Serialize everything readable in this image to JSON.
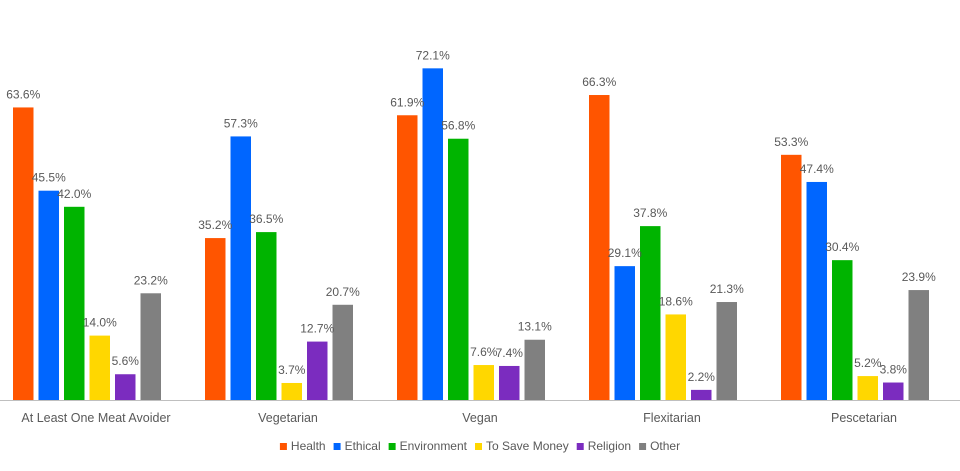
{
  "chart_data": {
    "type": "bar",
    "categories": [
      "At Least One Meat Avoider",
      "Vegetarian",
      "Vegan",
      "Flexitarian",
      "Pescetarian"
    ],
    "series": [
      {
        "name": "Health",
        "color": "#FF5500",
        "values": [
          63.6,
          35.2,
          61.9,
          66.3,
          53.3
        ],
        "labels": [
          "63.6%",
          "35.2%",
          "61.9%",
          "66.3%",
          "53.3%"
        ]
      },
      {
        "name": "Ethical",
        "color": "#0066FF",
        "values": [
          45.5,
          57.3,
          72.1,
          29.1,
          47.4
        ],
        "labels": [
          "45.5%",
          "57.3%",
          "72.1%",
          "29.1%",
          "47.4%"
        ]
      },
      {
        "name": "Environment",
        "color": "#00B400",
        "values": [
          42.0,
          36.5,
          56.8,
          37.8,
          30.4
        ],
        "labels": [
          "42.0%",
          "36.5%",
          "56.8%",
          "37.8%",
          "30.4%"
        ]
      },
      {
        "name": "To Save Money",
        "color": "#FFD700",
        "values": [
          14.0,
          3.7,
          7.6,
          18.6,
          5.2
        ],
        "labels": [
          "14.0%",
          "3.7%",
          "7.6%",
          "18.6%",
          "5.2%"
        ]
      },
      {
        "name": "Religion",
        "color": "#7B2CBF",
        "values": [
          5.6,
          12.7,
          7.4,
          2.2,
          3.8
        ],
        "labels": [
          "5.6%",
          "12.7%",
          "7.4%",
          "2.2%",
          "3.8%"
        ]
      },
      {
        "name": "Other",
        "color": "#808080",
        "values": [
          23.2,
          20.7,
          13.1,
          21.3,
          23.9
        ],
        "labels": [
          "23.2%",
          "20.7%",
          "13.1%",
          "21.3%",
          "23.9%"
        ]
      }
    ],
    "ylim": [
      0,
      75
    ],
    "grid": false,
    "legend": "bottom",
    "title": "",
    "xlabel": "",
    "ylabel": ""
  }
}
